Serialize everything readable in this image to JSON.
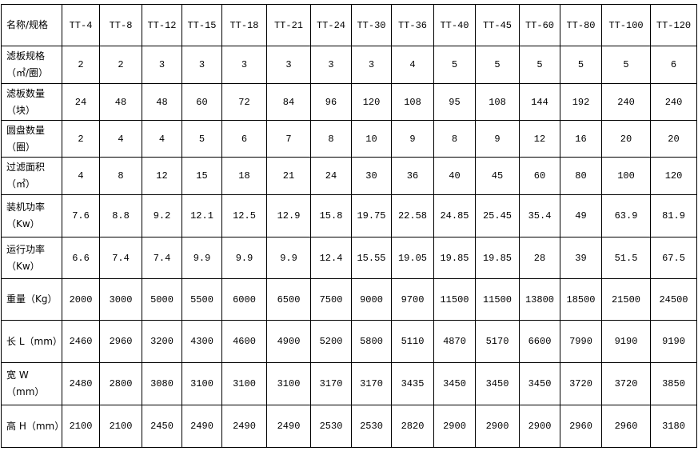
{
  "header": {
    "label": "名称/规格",
    "models": [
      "TT-4",
      "TT-8",
      "TT-12",
      "TT-15",
      "TT-18",
      "TT-21",
      "TT-24",
      "TT-30",
      "TT-36",
      "TT-40",
      "TT-45",
      "TT-60",
      "TT-80",
      "TT-100",
      "TT-120"
    ]
  },
  "rows": [
    {
      "label": "滤板规格",
      "unit": "（㎡/圈）",
      "values": [
        "2",
        "2",
        "3",
        "3",
        "3",
        "3",
        "3",
        "3",
        "4",
        "5",
        "5",
        "5",
        "5",
        "5",
        "6"
      ]
    },
    {
      "label": "滤板数量",
      "unit": "（块）",
      "values": [
        "24",
        "48",
        "48",
        "60",
        "72",
        "84",
        "96",
        "120",
        "108",
        "95",
        "108",
        "144",
        "192",
        "240",
        "240"
      ]
    },
    {
      "label": "圆盘数量",
      "unit": "（圈）",
      "values": [
        "2",
        "4",
        "4",
        "5",
        "6",
        "7",
        "8",
        "10",
        "9",
        "8",
        "9",
        "12",
        "16",
        "20",
        "20"
      ]
    },
    {
      "label": "过滤面积",
      "unit": "（㎡）",
      "values": [
        "4",
        "8",
        "12",
        "15",
        "18",
        "21",
        "24",
        "30",
        "36",
        "40",
        "45",
        "60",
        "80",
        "100",
        "120"
      ]
    },
    {
      "label": "装机功率",
      "unit": "（Kw）",
      "values": [
        "7.6",
        "8.8",
        "9.2",
        "12.1",
        "12.5",
        "12.9",
        "15.8",
        "19.75",
        "22.58",
        "24.85",
        "25.45",
        "35.4",
        "49",
        "63.9",
        "81.9"
      ]
    },
    {
      "label": "运行功率",
      "unit": "（Kw）",
      "values": [
        "6.6",
        "7.4",
        "7.4",
        "9.9",
        "9.9",
        "9.9",
        "12.4",
        "15.55",
        "19.05",
        "19.85",
        "19.85",
        "28",
        "39",
        "51.5",
        "67.5"
      ]
    },
    {
      "label": "重量（Kg）",
      "unit": "",
      "values": [
        "2000",
        "3000",
        "5000",
        "5500",
        "6000",
        "6500",
        "7500",
        "9000",
        "9700",
        "11500",
        "11500",
        "13800",
        "18500",
        "21500",
        "24500"
      ]
    },
    {
      "label": "长 L（mm）",
      "unit": "",
      "values": [
        "2460",
        "2960",
        "3200",
        "4300",
        "4600",
        "4900",
        "5200",
        "5800",
        "5110",
        "4870",
        "5170",
        "6600",
        "7990",
        "9190",
        "9190"
      ]
    },
    {
      "label": "宽 W（mm）",
      "unit": "",
      "values": [
        "2480",
        "2800",
        "3080",
        "3100",
        "3100",
        "3100",
        "3170",
        "3170",
        "3435",
        "3450",
        "3450",
        "3450",
        "3720",
        "3720",
        "3850"
      ]
    },
    {
      "label": "高 H（mm）",
      "unit": "",
      "values": [
        "2100",
        "2100",
        "2450",
        "2490",
        "2490",
        "2490",
        "2530",
        "2530",
        "2820",
        "2900",
        "2900",
        "2900",
        "2960",
        "2960",
        "3180"
      ]
    }
  ]
}
